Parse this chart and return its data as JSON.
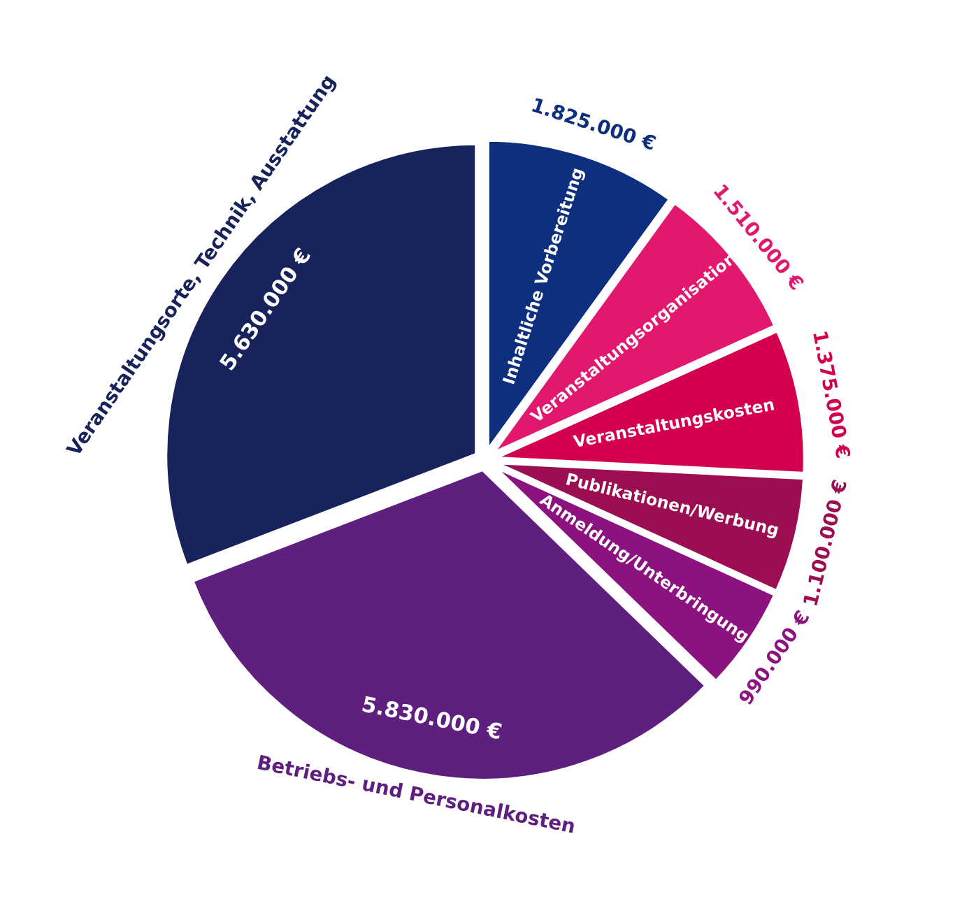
{
  "chart_data": {
    "type": "pie",
    "categories": [
      "Inhaltliche Vorbereitung",
      "Veranstaltungsorganisation",
      "Veranstaltungskosten",
      "Publikationen/Werbung",
      "Anmeldung/Unterbringung",
      "Betriebs- und Personalkosten",
      "Veranstaltungsorte, Technik, Ausstattung"
    ],
    "values": [
      1825000,
      1510000,
      1375000,
      1100000,
      990000,
      5830000,
      5630000
    ],
    "value_labels": [
      "1.825.000 €",
      "1.510.000 €",
      "1.375.000 €",
      "1.100.000 €",
      "990.000 €",
      "5.830.000 €",
      "5.630.000 €"
    ],
    "colors": [
      "#0d2f7e",
      "#e2186f",
      "#d2004f",
      "#9c0e52",
      "#8c1280",
      "#5e1f7e",
      "#17235a"
    ],
    "legend": false
  }
}
